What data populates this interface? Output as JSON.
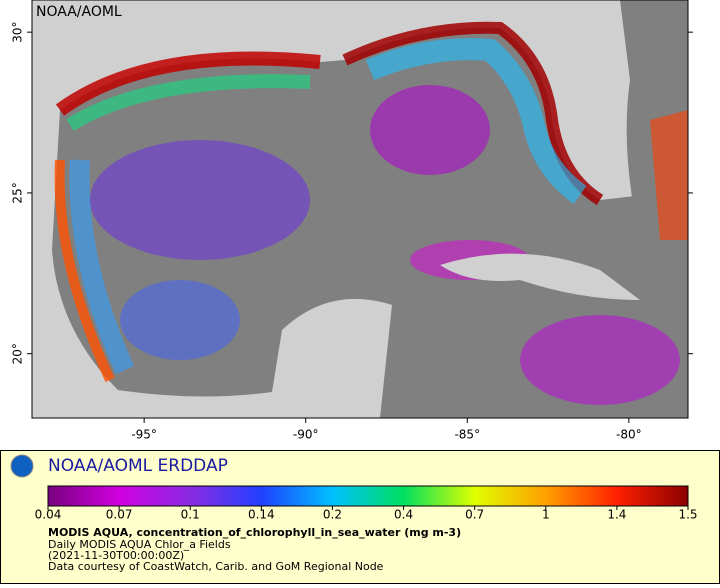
{
  "map": {
    "watermark": "NOAA/AOML",
    "lonlim": [
      -98.47,
      -78.17
    ],
    "latlim": [
      18,
      31
    ],
    "lat_ticks": [
      {
        "value": 30,
        "label": "30°"
      },
      {
        "value": 25,
        "label": "25°"
      },
      {
        "value": 20,
        "label": "20°"
      }
    ],
    "lon_ticks": [
      {
        "value": -95,
        "label": "-95°"
      },
      {
        "value": -90,
        "label": "-90°"
      },
      {
        "value": -85,
        "label": "-85°"
      },
      {
        "value": -80,
        "label": "-80°"
      }
    ]
  },
  "legend": {
    "title": "NOAA/AOML ERDDAP",
    "colorbar": {
      "ticks": [
        0.04,
        0.07,
        0.1,
        0.14,
        0.2,
        0.4,
        0.7,
        1,
        1.4,
        1.5
      ],
      "colors": [
        "#7a0080",
        "#d000e0",
        "#8a2be2",
        "#2040ff",
        "#00c0ff",
        "#00e060",
        "#e0ff00",
        "#ffa000",
        "#ff2000",
        "#8b0000"
      ]
    },
    "variable": "MODIS AQUA, concentration_of_chlorophyll_in_sea_water (mg m-3)",
    "lines": [
      "Daily MODIS AQUA Chlor_a Fields",
      "(2021-11-30T00:00:00Z)",
      "Data courtesy of CoastWatch, Carib. and GoM Regional Node"
    ]
  }
}
